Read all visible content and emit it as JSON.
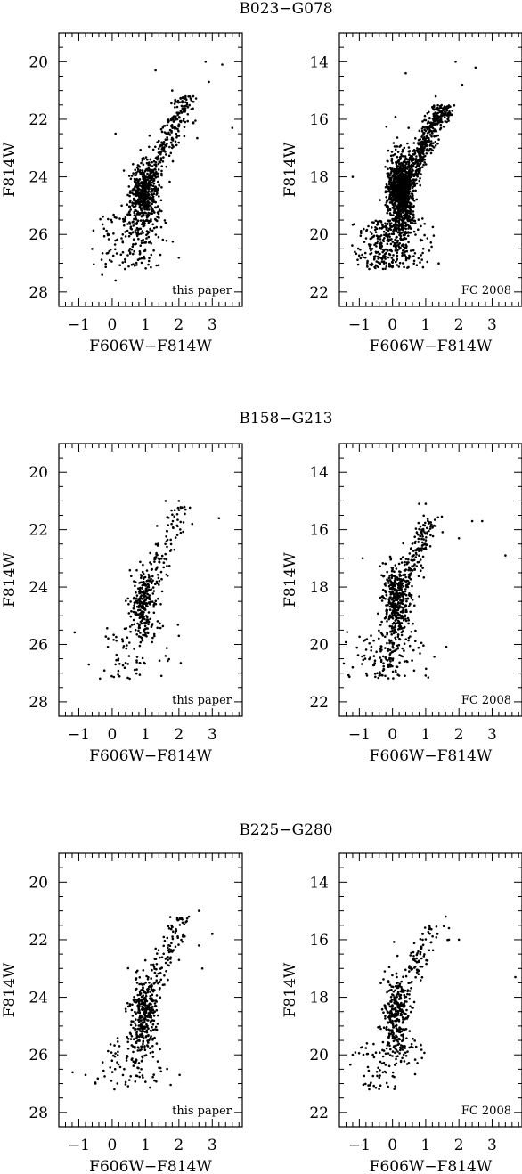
{
  "figure": {
    "rows": [
      {
        "title": "B023−G078"
      },
      {
        "title": "B158−G213"
      },
      {
        "title": "B225−G280"
      }
    ]
  },
  "chart_data": [
    {
      "type": "scatter",
      "cluster": "B023−G078",
      "panel_label": "this paper",
      "xlabel": "F606W−F814W",
      "ylabel": "F814W",
      "xlim": [
        -1.6,
        3.9
      ],
      "ylim": [
        28.5,
        19
      ],
      "y_inverted": true,
      "xticks": [
        -1,
        0,
        1,
        2,
        3
      ],
      "yticks": [
        20,
        22,
        24,
        26,
        28
      ],
      "n_points": 900,
      "points_sample": [
        [
          2.8,
          20.0
        ],
        [
          3.3,
          20.1
        ],
        [
          2.9,
          20.7
        ],
        [
          1.3,
          20.3
        ],
        [
          3.6,
          22.3
        ],
        [
          0.1,
          22.5
        ],
        [
          1.8,
          21.0
        ],
        [
          2.2,
          21.2
        ],
        [
          -0.6,
          26.5
        ],
        [
          -0.3,
          27.4
        ],
        [
          0.1,
          27.6
        ]
      ]
    },
    {
      "type": "scatter",
      "cluster": "B023−G078",
      "panel_label": "FC 2008",
      "xlabel": "F606W−F814W",
      "ylabel": "F814W",
      "xlim": [
        -1.6,
        3.9
      ],
      "ylim": [
        22.5,
        13
      ],
      "y_inverted": true,
      "xticks": [
        -1,
        0,
        1,
        2,
        3
      ],
      "yticks": [
        14,
        16,
        18,
        20,
        22
      ],
      "n_points": 1800,
      "points_sample": [
        [
          1.9,
          14.0
        ],
        [
          2.5,
          14.2
        ],
        [
          2.1,
          14.8
        ],
        [
          0.4,
          14.4
        ],
        [
          -1.2,
          18.0
        ],
        [
          -0.7,
          21.2
        ],
        [
          1.3,
          15.2
        ],
        [
          0.9,
          17.0
        ]
      ]
    },
    {
      "type": "scatter",
      "cluster": "B158−G213",
      "panel_label": "this paper",
      "xlabel": "F606W−F814W",
      "ylabel": "F814W",
      "xlim": [
        -1.6,
        3.9
      ],
      "ylim": [
        28.5,
        19
      ],
      "y_inverted": true,
      "xticks": [
        -1,
        0,
        1,
        2,
        3
      ],
      "yticks": [
        20,
        22,
        24,
        26,
        28
      ],
      "n_points": 420,
      "points_sample": [
        [
          1.6,
          21.0
        ],
        [
          2.0,
          21.0
        ],
        [
          2.2,
          21.3
        ],
        [
          3.2,
          21.6
        ],
        [
          2.4,
          21.8
        ],
        [
          -0.7,
          26.7
        ],
        [
          1.6,
          26.4
        ],
        [
          2.0,
          25.7
        ]
      ]
    },
    {
      "type": "scatter",
      "cluster": "B158−G213",
      "panel_label": "FC 2008",
      "xlabel": "F606W−F814W",
      "ylabel": "F814W",
      "xlim": [
        -1.6,
        3.9
      ],
      "ylim": [
        22.5,
        13
      ],
      "y_inverted": true,
      "xticks": [
        -1,
        0,
        1,
        2,
        3
      ],
      "yticks": [
        14,
        16,
        18,
        20,
        22
      ],
      "n_points": 700,
      "points_sample": [
        [
          0.8,
          15.1
        ],
        [
          1.0,
          15.1
        ],
        [
          2.4,
          15.7
        ],
        [
          2.7,
          15.7
        ],
        [
          3.4,
          16.9
        ],
        [
          2.0,
          16.3
        ],
        [
          -0.9,
          17.0
        ],
        [
          -1.2,
          20.8
        ]
      ]
    },
    {
      "type": "scatter",
      "cluster": "B225−G280",
      "panel_label": "this paper",
      "xlabel": "F606W−F814W",
      "ylabel": "F814W",
      "xlim": [
        -1.6,
        3.9
      ],
      "ylim": [
        28.5,
        19
      ],
      "y_inverted": true,
      "xticks": [
        -1,
        0,
        1,
        2,
        3
      ],
      "yticks": [
        20,
        22,
        24,
        26,
        28
      ],
      "n_points": 520,
      "points_sample": [
        [
          2.6,
          21.0
        ],
        [
          2.3,
          21.2
        ],
        [
          2.1,
          21.3
        ],
        [
          3.0,
          21.8
        ],
        [
          2.6,
          22.2
        ],
        [
          2.7,
          23.0
        ],
        [
          -0.8,
          26.7
        ],
        [
          -0.5,
          27.0
        ]
      ]
    },
    {
      "type": "scatter",
      "cluster": "B225−G280",
      "panel_label": "FC 2008",
      "xlabel": "F606W−F814W",
      "ylabel": "F814W",
      "xlim": [
        -1.6,
        3.9
      ],
      "ylim": [
        22.5,
        13
      ],
      "y_inverted": true,
      "xticks": [
        -1,
        0,
        1,
        2,
        3
      ],
      "yticks": [
        14,
        16,
        18,
        20,
        22
      ],
      "n_points": 480,
      "points_sample": [
        [
          1.6,
          15.2
        ],
        [
          1.7,
          15.6
        ],
        [
          1.7,
          16.0
        ],
        [
          2.0,
          16.0
        ],
        [
          3.7,
          17.3
        ],
        [
          -1.2,
          20.0
        ],
        [
          -0.7,
          21.2
        ]
      ]
    }
  ]
}
